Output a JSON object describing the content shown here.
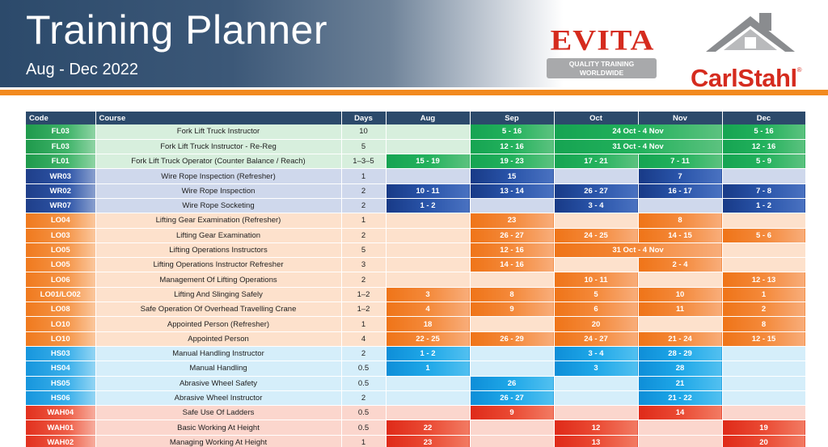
{
  "header": {
    "title": "Training Planner",
    "subtitle": "Aug - Dec 2022"
  },
  "logos": {
    "evita": {
      "name": "EVITA",
      "tagline_line1": "QUALITY TRAINING",
      "tagline_line2": "WORLDWIDE"
    },
    "carlstahl": {
      "name": "CarlStahl",
      "registered": "®"
    }
  },
  "colors": {
    "header_blue": "#2c4a6b",
    "accent_orange": "#f28a1f",
    "brand_red": "#d52b1e",
    "forklift_green": "#22b15c",
    "wire_rope_blue": "#2a55aa",
    "lifting_orange": "#f4893a",
    "health_safety_cyan": "#1fa8e8",
    "work_at_height_red": "#ea4a33"
  },
  "table": {
    "columns": [
      "Code",
      "Course",
      "Days",
      "Aug",
      "Sep",
      "Oct",
      "Nov",
      "Dec"
    ],
    "rows": [
      {
        "group": "fl",
        "code": "FL03",
        "course": "Fork Lift Truck Instructor",
        "days": "10",
        "cells": [
          {
            "span": 1,
            "text": ""
          },
          {
            "span": 1,
            "text": "5 - 16"
          },
          {
            "span": 2,
            "text": "24 Oct - 4 Nov"
          },
          {
            "span": 1,
            "text": "5 - 16"
          }
        ]
      },
      {
        "group": "fl",
        "code": "FL03",
        "course": "Fork Lift Truck Instructor - Re-Reg",
        "days": "5",
        "cells": [
          {
            "span": 1,
            "text": ""
          },
          {
            "span": 1,
            "text": "12 - 16"
          },
          {
            "span": 2,
            "text": "31 Oct - 4 Nov"
          },
          {
            "span": 1,
            "text": "12 - 16"
          }
        ]
      },
      {
        "group": "fl",
        "code": "FL01",
        "course": "Fork Lift Truck Operator (Counter Balance / Reach)",
        "days": "1–3–5",
        "cells": [
          {
            "span": 1,
            "text": "15 - 19"
          },
          {
            "span": 1,
            "text": "19 - 23"
          },
          {
            "span": 1,
            "text": "17 - 21"
          },
          {
            "span": 1,
            "text": "7 - 11"
          },
          {
            "span": 1,
            "text": "5 - 9"
          }
        ]
      },
      {
        "group": "wr",
        "code": "WR03",
        "course": "Wire Rope Inspection (Refresher)",
        "days": "1",
        "cells": [
          {
            "span": 1,
            "text": ""
          },
          {
            "span": 1,
            "text": "15"
          },
          {
            "span": 1,
            "text": ""
          },
          {
            "span": 1,
            "text": "7"
          },
          {
            "span": 1,
            "text": ""
          }
        ]
      },
      {
        "group": "wr",
        "code": "WR02",
        "course": "Wire Rope Inspection",
        "days": "2",
        "cells": [
          {
            "span": 1,
            "text": "10 - 11"
          },
          {
            "span": 1,
            "text": "13 - 14"
          },
          {
            "span": 1,
            "text": "26 - 27"
          },
          {
            "span": 1,
            "text": "16 - 17"
          },
          {
            "span": 1,
            "text": "7 - 8"
          }
        ]
      },
      {
        "group": "wr",
        "code": "WR07",
        "course": "Wire Rope Socketing",
        "days": "2",
        "cells": [
          {
            "span": 1,
            "text": "1 - 2"
          },
          {
            "span": 1,
            "text": ""
          },
          {
            "span": 1,
            "text": "3 - 4"
          },
          {
            "span": 1,
            "text": ""
          },
          {
            "span": 1,
            "text": "1 - 2"
          }
        ]
      },
      {
        "group": "lo",
        "code": "LO04",
        "course": "Lifting Gear Examination (Refresher)",
        "days": "1",
        "cells": [
          {
            "span": 1,
            "text": ""
          },
          {
            "span": 1,
            "text": "23"
          },
          {
            "span": 1,
            "text": ""
          },
          {
            "span": 1,
            "text": "8"
          },
          {
            "span": 1,
            "text": ""
          }
        ]
      },
      {
        "group": "lo",
        "code": "LO03",
        "course": "Lifting Gear Examination",
        "days": "2",
        "cells": [
          {
            "span": 1,
            "text": ""
          },
          {
            "span": 1,
            "text": "26 - 27"
          },
          {
            "span": 1,
            "text": "24 - 25"
          },
          {
            "span": 1,
            "text": "14 - 15"
          },
          {
            "span": 1,
            "text": "5 - 6"
          }
        ]
      },
      {
        "group": "lo",
        "code": "LO05",
        "course": "Lifting Operations Instructors",
        "days": "5",
        "cells": [
          {
            "span": 1,
            "text": ""
          },
          {
            "span": 1,
            "text": "12 - 16"
          },
          {
            "span": 2,
            "text": "31 Oct - 4 Nov"
          },
          {
            "span": 1,
            "text": ""
          }
        ]
      },
      {
        "group": "lo",
        "code": "LO05",
        "course": "Lifting Operations Instructor Refresher",
        "days": "3",
        "cells": [
          {
            "span": 1,
            "text": ""
          },
          {
            "span": 1,
            "text": "14 - 16"
          },
          {
            "span": 1,
            "text": ""
          },
          {
            "span": 1,
            "text": "2 - 4"
          },
          {
            "span": 1,
            "text": ""
          }
        ]
      },
      {
        "group": "lo",
        "code": "LO06",
        "course": "Management Of Lifting Operations",
        "days": "2",
        "cells": [
          {
            "span": 1,
            "text": ""
          },
          {
            "span": 1,
            "text": ""
          },
          {
            "span": 1,
            "text": "10 - 11"
          },
          {
            "span": 1,
            "text": ""
          },
          {
            "span": 1,
            "text": "12 - 13"
          }
        ]
      },
      {
        "group": "lo",
        "code": "LO01/LO02",
        "course": "Lifting And Slinging Safely",
        "days": "1–2",
        "cells": [
          {
            "span": 1,
            "text": "3"
          },
          {
            "span": 1,
            "text": "8"
          },
          {
            "span": 1,
            "text": "5"
          },
          {
            "span": 1,
            "text": "10"
          },
          {
            "span": 1,
            "text": "1"
          }
        ]
      },
      {
        "group": "lo",
        "code": "LO08",
        "course": "Safe Operation Of Overhead Travelling Crane",
        "days": "1–2",
        "cells": [
          {
            "span": 1,
            "text": "4"
          },
          {
            "span": 1,
            "text": "9"
          },
          {
            "span": 1,
            "text": "6"
          },
          {
            "span": 1,
            "text": "11"
          },
          {
            "span": 1,
            "text": "2"
          }
        ]
      },
      {
        "group": "lo",
        "code": "LO10",
        "course": "Appointed Person (Refresher)",
        "days": "1",
        "cells": [
          {
            "span": 1,
            "text": "18"
          },
          {
            "span": 1,
            "text": ""
          },
          {
            "span": 1,
            "text": "20"
          },
          {
            "span": 1,
            "text": ""
          },
          {
            "span": 1,
            "text": "8"
          }
        ]
      },
      {
        "group": "lo",
        "code": "LO10",
        "course": "Appointed Person",
        "days": "4",
        "cells": [
          {
            "span": 1,
            "text": "22 - 25"
          },
          {
            "span": 1,
            "text": "26 - 29"
          },
          {
            "span": 1,
            "text": "24 - 27"
          },
          {
            "span": 1,
            "text": "21 - 24"
          },
          {
            "span": 1,
            "text": "12 - 15"
          }
        ]
      },
      {
        "group": "hs",
        "code": "HS03",
        "course": "Manual Handling Instructor",
        "days": "2",
        "cells": [
          {
            "span": 1,
            "text": "1 - 2"
          },
          {
            "span": 1,
            "text": ""
          },
          {
            "span": 1,
            "text": "3 - 4"
          },
          {
            "span": 1,
            "text": "28 - 29"
          },
          {
            "span": 1,
            "text": ""
          }
        ]
      },
      {
        "group": "hs",
        "code": "HS04",
        "course": "Manual Handling",
        "days": "0.5",
        "cells": [
          {
            "span": 1,
            "text": "1"
          },
          {
            "span": 1,
            "text": ""
          },
          {
            "span": 1,
            "text": "3"
          },
          {
            "span": 1,
            "text": "28"
          },
          {
            "span": 1,
            "text": ""
          }
        ]
      },
      {
        "group": "hs",
        "code": "HS05",
        "course": "Abrasive Wheel Safety",
        "days": "0.5",
        "cells": [
          {
            "span": 1,
            "text": ""
          },
          {
            "span": 1,
            "text": "26"
          },
          {
            "span": 1,
            "text": ""
          },
          {
            "span": 1,
            "text": "21"
          },
          {
            "span": 1,
            "text": ""
          }
        ]
      },
      {
        "group": "hs",
        "code": "HS06",
        "course": "Abrasive Wheel Instructor",
        "days": "2",
        "cells": [
          {
            "span": 1,
            "text": ""
          },
          {
            "span": 1,
            "text": "26 - 27"
          },
          {
            "span": 1,
            "text": ""
          },
          {
            "span": 1,
            "text": "21 - 22"
          },
          {
            "span": 1,
            "text": ""
          }
        ]
      },
      {
        "group": "wah",
        "code": "WAH04",
        "course": "Safe Use Of Ladders",
        "days": "0.5",
        "cells": [
          {
            "span": 1,
            "text": ""
          },
          {
            "span": 1,
            "text": "9"
          },
          {
            "span": 1,
            "text": ""
          },
          {
            "span": 1,
            "text": "14"
          },
          {
            "span": 1,
            "text": ""
          }
        ]
      },
      {
        "group": "wah",
        "code": "WAH01",
        "course": "Basic Working At Height",
        "days": "0.5",
        "cells": [
          {
            "span": 1,
            "text": "22"
          },
          {
            "span": 1,
            "text": ""
          },
          {
            "span": 1,
            "text": "12"
          },
          {
            "span": 1,
            "text": ""
          },
          {
            "span": 1,
            "text": "19"
          }
        ]
      },
      {
        "group": "wah",
        "code": "WAH02",
        "course": "Managing Working At Height",
        "days": "1",
        "cells": [
          {
            "span": 1,
            "text": "23"
          },
          {
            "span": 1,
            "text": ""
          },
          {
            "span": 1,
            "text": "13"
          },
          {
            "span": 1,
            "text": ""
          },
          {
            "span": 1,
            "text": "20"
          }
        ]
      }
    ]
  }
}
